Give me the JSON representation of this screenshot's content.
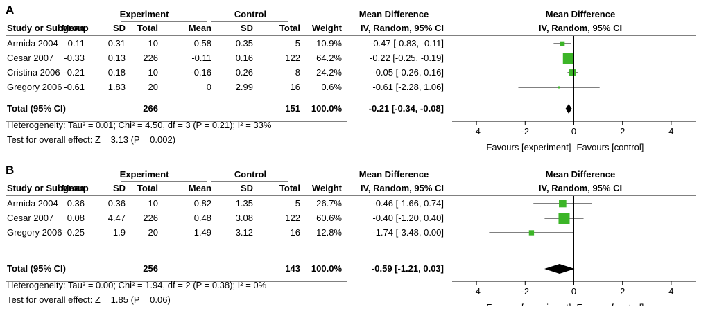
{
  "palette": {
    "square": "#3cb528",
    "diamond": "#000000",
    "line": "#000000"
  },
  "headers": {
    "experiment": "Experiment",
    "control": "Control",
    "mean_difference": "Mean Difference",
    "study_or_subgroup": "Study or Subgroup",
    "mean": "Mean",
    "sd": "SD",
    "total": "Total",
    "weight": "Weight",
    "method": "IV, Random, 95% CI"
  },
  "axis_labels": {
    "left": "Favours [experiment]",
    "right": "Favours [control]"
  },
  "chart_data": [
    {
      "panel": "A",
      "type": "forest",
      "xlim": [
        -5,
        5
      ],
      "ticks": [
        "-4",
        "-2",
        "0",
        "2",
        "4"
      ],
      "tick_values": [
        -4,
        -2,
        0,
        2,
        4
      ],
      "studies": [
        {
          "name": "Armida 2004",
          "exp_mean": "0.11",
          "exp_sd": "0.31",
          "exp_total": "10",
          "ctl_mean": "0.58",
          "ctl_sd": "0.35",
          "ctl_total": "5",
          "weight": "10.9%",
          "ci_text": "-0.47 [-0.83, -0.11]",
          "md": -0.47,
          "lo": -0.83,
          "hi": -0.11,
          "w": 10.9
        },
        {
          "name": "Cesar 2007",
          "exp_mean": "-0.33",
          "exp_sd": "0.13",
          "exp_total": "226",
          "ctl_mean": "-0.11",
          "ctl_sd": "0.16",
          "ctl_total": "122",
          "weight": "64.2%",
          "ci_text": "-0.22 [-0.25, -0.19]",
          "md": -0.22,
          "lo": -0.25,
          "hi": -0.19,
          "w": 64.2
        },
        {
          "name": "Cristina 2006",
          "exp_mean": "-0.21",
          "exp_sd": "0.18",
          "exp_total": "10",
          "ctl_mean": "-0.16",
          "ctl_sd": "0.26",
          "ctl_total": "8",
          "weight": "24.2%",
          "ci_text": "-0.05 [-0.26, 0.16]",
          "md": -0.05,
          "lo": -0.26,
          "hi": 0.16,
          "w": 24.2
        },
        {
          "name": "Gregory 2006",
          "exp_mean": "-0.61",
          "exp_sd": "1.83",
          "exp_total": "20",
          "ctl_mean": "0",
          "ctl_sd": "2.99",
          "ctl_total": "16",
          "weight": "0.6%",
          "ci_text": "-0.61 [-2.28, 1.06]",
          "md": -0.61,
          "lo": -2.28,
          "hi": 1.06,
          "w": 0.6
        }
      ],
      "total": {
        "label": "Total (95% CI)",
        "exp_total": "266",
        "ctl_total": "151",
        "weight": "100.0%",
        "ci_text": "-0.21 [-0.34, -0.08]",
        "md": -0.21,
        "lo": -0.34,
        "hi": -0.08
      },
      "heterogeneity": "Heterogeneity: Tau² = 0.01; Chi² = 4.50, df = 3 (P = 0.21); I² = 33%",
      "overall_effect": "Test for overall effect: Z = 3.13 (P = 0.002)"
    },
    {
      "panel": "B",
      "type": "forest",
      "xlim": [
        -5,
        5
      ],
      "ticks": [
        "-4",
        "-2",
        "0",
        "2",
        "4"
      ],
      "tick_values": [
        -4,
        -2,
        0,
        2,
        4
      ],
      "studies": [
        {
          "name": "Armida 2004",
          "exp_mean": "0.36",
          "exp_sd": "0.36",
          "exp_total": "10",
          "ctl_mean": "0.82",
          "ctl_sd": "1.35",
          "ctl_total": "5",
          "weight": "26.7%",
          "ci_text": "-0.46 [-1.66, 0.74]",
          "md": -0.46,
          "lo": -1.66,
          "hi": 0.74,
          "w": 26.7
        },
        {
          "name": "Cesar 2007",
          "exp_mean": "0.08",
          "exp_sd": "4.47",
          "exp_total": "226",
          "ctl_mean": "0.48",
          "ctl_sd": "3.08",
          "ctl_total": "122",
          "weight": "60.6%",
          "ci_text": "-0.40 [-1.20, 0.40]",
          "md": -0.4,
          "lo": -1.2,
          "hi": 0.4,
          "w": 60.6
        },
        {
          "name": "Gregory 2006",
          "exp_mean": "-0.25",
          "exp_sd": "1.9",
          "exp_total": "20",
          "ctl_mean": "1.49",
          "ctl_sd": "3.12",
          "ctl_total": "16",
          "weight": "12.8%",
          "ci_text": "-1.74 [-3.48, 0.00]",
          "md": -1.74,
          "lo": -3.48,
          "hi": 0.0,
          "w": 12.8
        }
      ],
      "total": {
        "label": "Total (95% CI)",
        "exp_total": "256",
        "ctl_total": "143",
        "weight": "100.0%",
        "ci_text": "-0.59 [-1.21, 0.03]",
        "md": -0.59,
        "lo": -1.21,
        "hi": 0.03
      },
      "heterogeneity": "Heterogeneity: Tau² = 0.00; Chi² = 1.94, df = 2 (P = 0.38); I² = 0%",
      "overall_effect": "Test for overall effect: Z = 1.85 (P = 0.06)"
    }
  ]
}
